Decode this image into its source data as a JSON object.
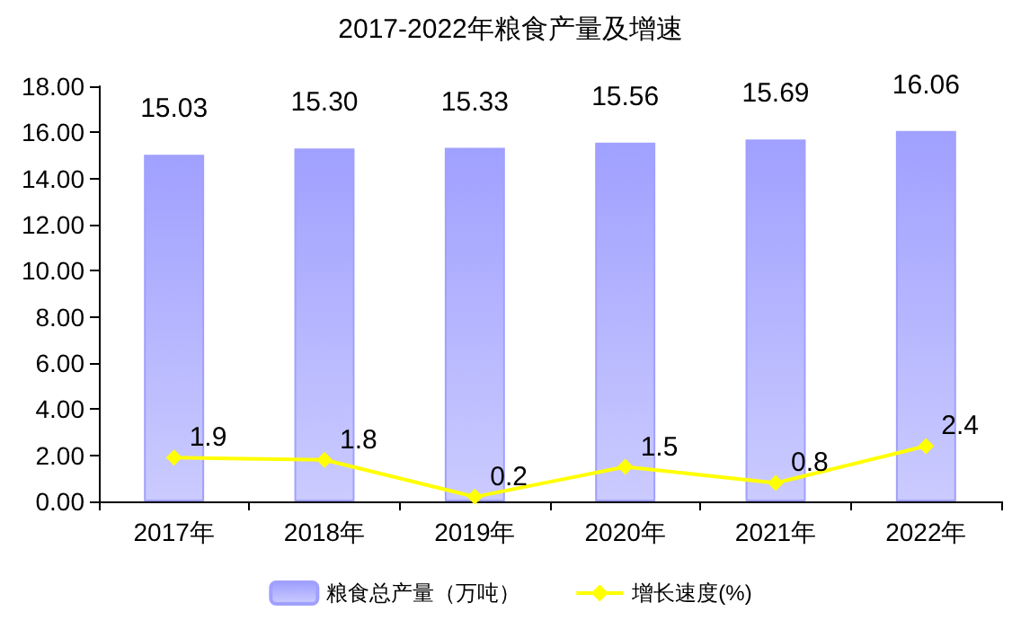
{
  "chart_data": {
    "type": "bar",
    "title": "2017-2022年粮食产量及增速",
    "categories": [
      "2017年",
      "2018年",
      "2019年",
      "2020年",
      "2021年",
      "2022年"
    ],
    "series": [
      {
        "name": "粮食总产量（万吨）",
        "color": "#a0a0ff",
        "values": [
          15.03,
          15.3,
          15.33,
          15.56,
          15.69,
          16.06
        ],
        "value_labels": [
          "15.03",
          "15.30",
          "15.33",
          "15.56",
          "15.69",
          "16.06"
        ]
      },
      {
        "name": "增长速度(%)",
        "type": "line",
        "color": "#ffff00",
        "marker": "diamond",
        "values": [
          1.9,
          1.8,
          0.2,
          1.5,
          0.8,
          2.4
        ],
        "value_labels": [
          "1.9",
          "1.8",
          "0.2",
          "1.5",
          "0.8",
          "2.4"
        ]
      }
    ],
    "ylim": [
      0,
      18
    ],
    "yticks": [
      {
        "value": 0,
        "label": "0.00"
      },
      {
        "value": 2,
        "label": "2.00"
      },
      {
        "value": 4,
        "label": "4.00"
      },
      {
        "value": 6,
        "label": "6.00"
      },
      {
        "value": 8,
        "label": "8.00"
      },
      {
        "value": 10,
        "label": "10.00"
      },
      {
        "value": 12,
        "label": "12.00"
      },
      {
        "value": 14,
        "label": "14.00"
      },
      {
        "value": 16,
        "label": "16.00"
      },
      {
        "value": 18,
        "label": "18.00"
      }
    ],
    "grid": false,
    "legend": "bottom"
  }
}
